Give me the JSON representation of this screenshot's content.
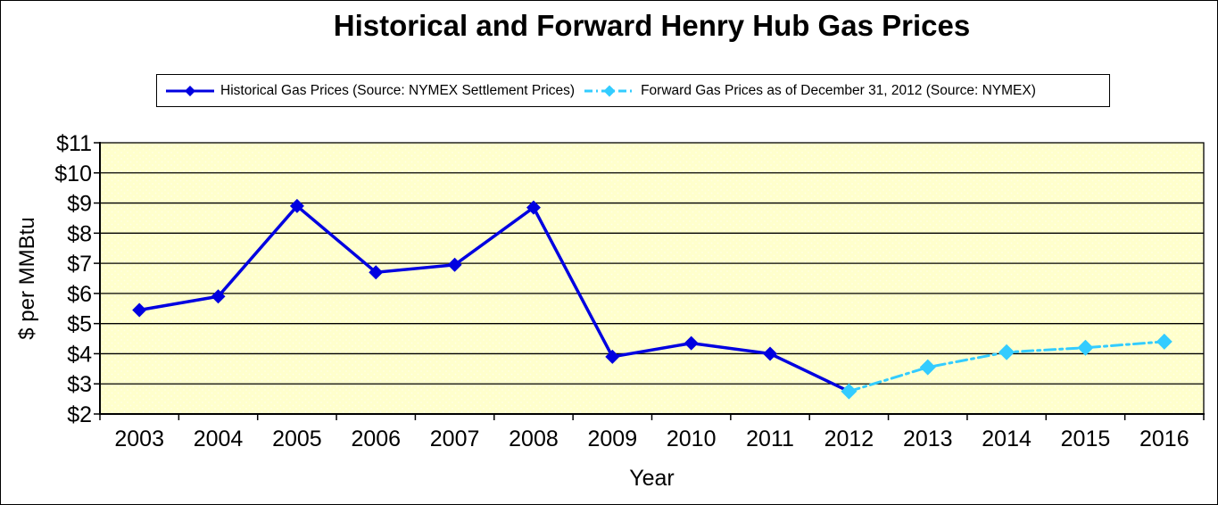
{
  "title": "Historical and Forward Henry Hub Gas Prices",
  "legend": [
    {
      "label": "Historical Gas Prices (Source: NYMEX Settlement Prices)",
      "color": "#0000E0",
      "line_style": "solid",
      "marker": "diamond"
    },
    {
      "label": "Forward Gas Prices as of December 31, 2012 (Source: NYMEX)",
      "color": "#33CCFF",
      "line_style": "dash-dot",
      "marker": "diamond"
    }
  ],
  "chart_data": {
    "type": "line",
    "title": "Historical and Forward Henry Hub Gas Prices",
    "categories": [
      "2003",
      "2004",
      "2005",
      "2006",
      "2007",
      "2008",
      "2009",
      "2010",
      "2011",
      "2012",
      "2013",
      "2014",
      "2015",
      "2016"
    ],
    "series": [
      {
        "name": "Historical Gas Prices (Source: NYMEX Settlement Prices)",
        "color": "#0000E0",
        "line_style": "solid",
        "marker": "diamond",
        "values": [
          5.45,
          5.9,
          8.9,
          6.7,
          6.95,
          8.85,
          3.9,
          4.35,
          4.0,
          2.75,
          null,
          null,
          null,
          null
        ]
      },
      {
        "name": "Forward Gas Prices as of December 31, 2012 (Source: NYMEX)",
        "color": "#33CCFF",
        "line_style": "dash-dot",
        "marker": "diamond",
        "values": [
          null,
          null,
          null,
          null,
          null,
          null,
          null,
          null,
          null,
          2.75,
          3.55,
          4.05,
          4.2,
          4.4
        ]
      }
    ],
    "xlabel": "Year",
    "ylabel": "$ per MMBtu",
    "ylim": [
      2,
      11
    ],
    "ytick_step": 1,
    "ytick_prefix": "$",
    "grid": "horizontal",
    "plot_background": "#FFFFCC",
    "chart_background": "#FFFFFF",
    "legend_position": "top",
    "axis_color": "#000000"
  }
}
